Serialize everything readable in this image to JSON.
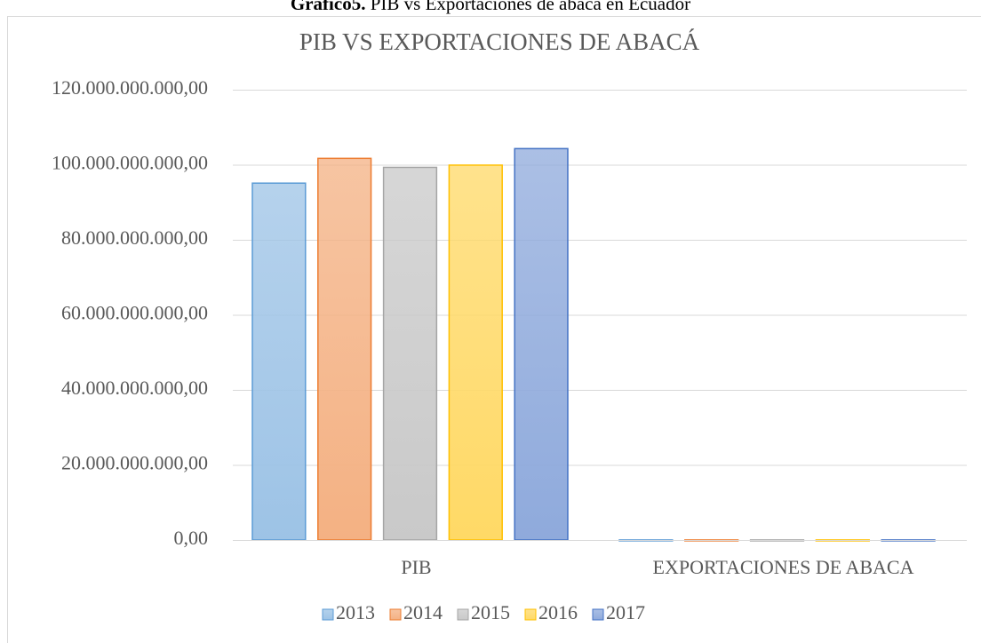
{
  "chart_data": {
    "type": "bar",
    "caption_label": "Gráfico5.",
    "caption": "PIB vs Exportaciones de abacá en Ecuador",
    "title": "PIB VS EXPORTACIONES DE ABACÁ",
    "categories": [
      "PIB",
      "EXPORTACIONES DE ABACA"
    ],
    "series": [
      {
        "name": "2013",
        "color": "#9dc3e6",
        "edge": "#5b9bd5",
        "values": [
          95100000000,
          12000000
        ]
      },
      {
        "name": "2014",
        "color": "#f4b183",
        "edge": "#ed7d31",
        "values": [
          101700000000,
          14000000
        ]
      },
      {
        "name": "2015",
        "color": "#c9c9c9",
        "edge": "#a5a5a5",
        "values": [
          99300000000,
          11000000
        ]
      },
      {
        "name": "2016",
        "color": "#ffd966",
        "edge": "#ffc000",
        "values": [
          99900000000,
          12000000
        ]
      },
      {
        "name": "2017",
        "color": "#8faadc",
        "edge": "#4472c4",
        "values": [
          104300000000,
          13000000
        ]
      }
    ],
    "ylim": [
      0,
      120000000000
    ],
    "yticks": [
      {
        "value": 0,
        "label": "0,00"
      },
      {
        "value": 20000000000,
        "label": "20.000.000.000,00"
      },
      {
        "value": 40000000000,
        "label": "40.000.000.000,00"
      },
      {
        "value": 60000000000,
        "label": "60.000.000.000,00"
      },
      {
        "value": 80000000000,
        "label": "80.000.000.000,00"
      },
      {
        "value": 100000000000,
        "label": "100.000.000.000,00"
      },
      {
        "value": 120000000000,
        "label": "120.000.000.000,00"
      }
    ],
    "grid": true,
    "legend": "bottom"
  }
}
